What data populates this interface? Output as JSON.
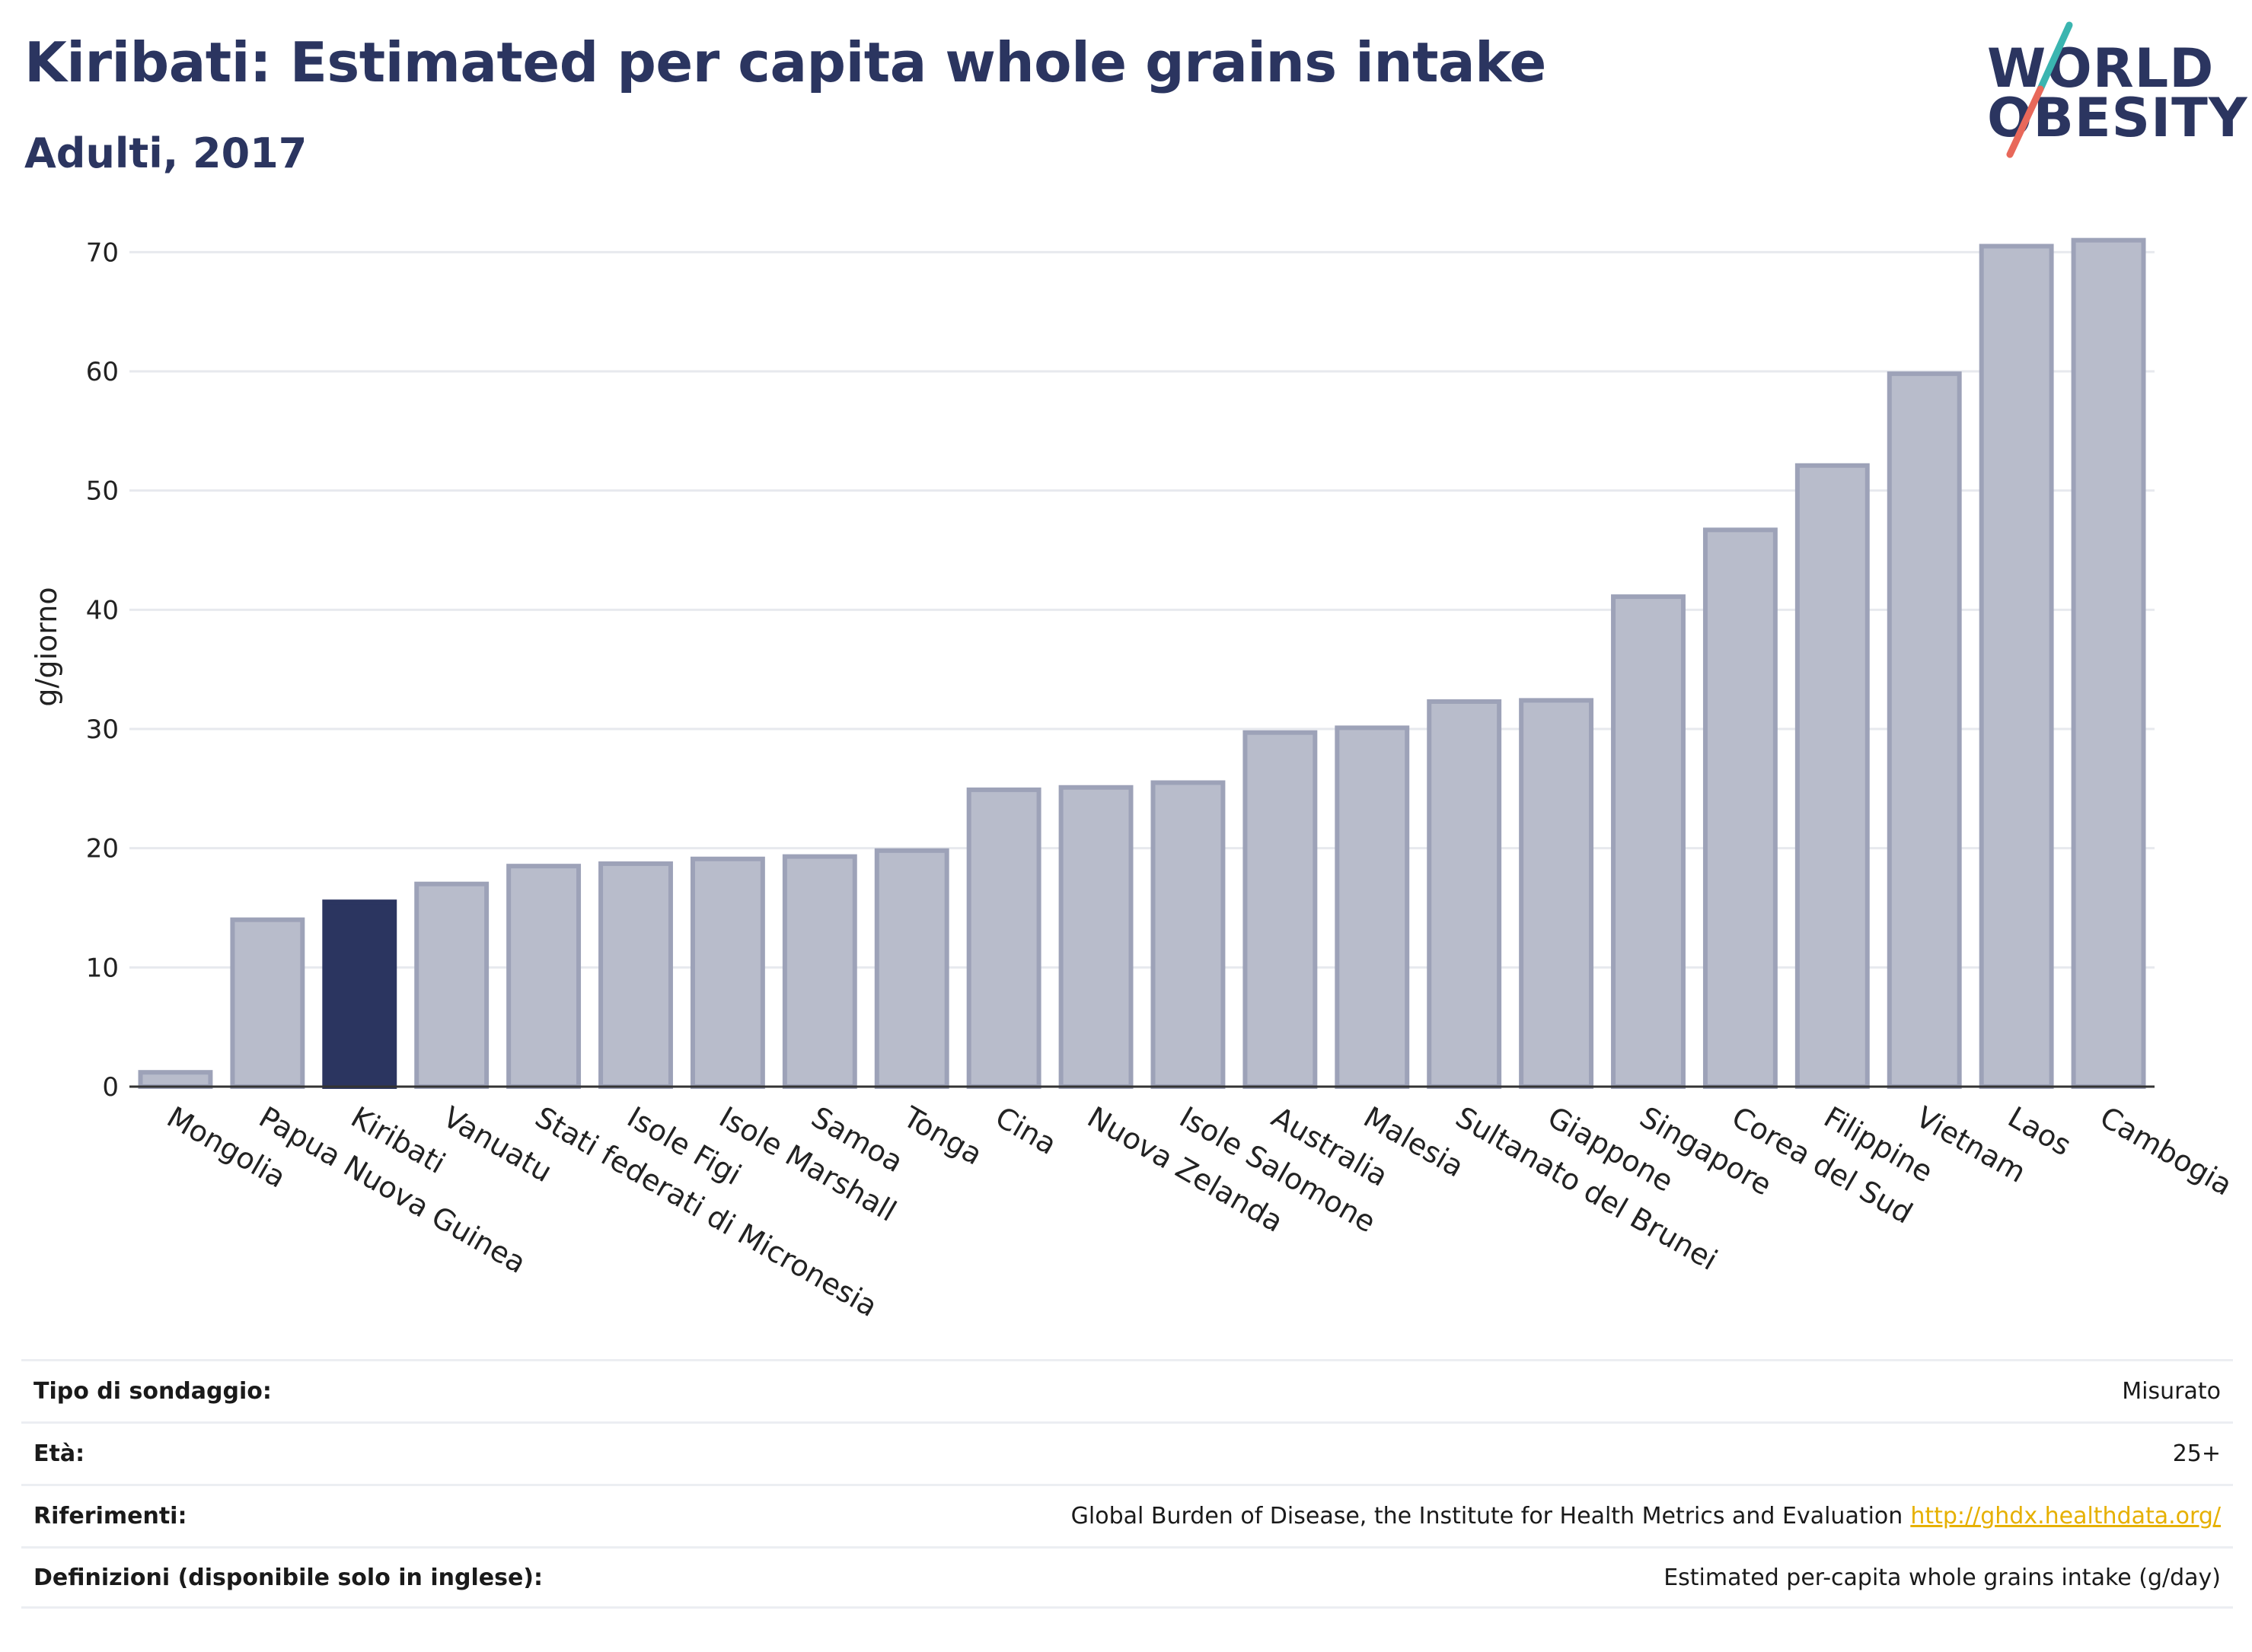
{
  "header": {
    "title": "Kiribati: Estimated per capita whole grains intake",
    "subtitle": "Adulti, 2017"
  },
  "logo": {
    "line1": "WORLD",
    "line2": "OBESITY",
    "colors": {
      "text": "#2b3560",
      "slash_top": "#3ab5b0",
      "slash_bottom": "#e8685a"
    }
  },
  "chart_data": {
    "type": "bar",
    "ylabel": "g/giorno",
    "ylim": [
      0,
      72
    ],
    "yticks": [
      0,
      10,
      20,
      30,
      40,
      50,
      60,
      70
    ],
    "grid": true,
    "highlight": "Kiribati",
    "colors": {
      "bar": "#b8bccb",
      "bar_stroke": "#9da2b8",
      "highlight": "#2b3560"
    },
    "categories": [
      "Mongolia",
      "Papua Nuova Guinea",
      "Kiribati",
      "Vanuatu",
      "Stati federati di Micronesia",
      "Isole Figi",
      "Isole Marshall",
      "Samoa",
      "Tonga",
      "Cina",
      "Nuova Zelanda",
      "Isole Salomone",
      "Australia",
      "Malesia",
      "Sultanato del Brunei",
      "Giappone",
      "Singapore",
      "Corea del Sud",
      "Filippine",
      "Vietnam",
      "Laos",
      "Cambogia"
    ],
    "values": [
      1.2,
      14.0,
      15.5,
      17.0,
      18.5,
      18.7,
      19.1,
      19.3,
      19.8,
      24.9,
      25.1,
      25.5,
      29.7,
      30.1,
      32.3,
      32.4,
      41.1,
      46.7,
      52.1,
      59.8,
      70.5,
      71.0
    ]
  },
  "meta": {
    "rows": [
      {
        "label": "Tipo di sondaggio:",
        "value": "Misurato"
      },
      {
        "label": "Età:",
        "value": "25+"
      },
      {
        "label": "Riferimenti:",
        "value": "Global Burden of Disease, the Institute for Health Metrics and Evaluation",
        "link": "http://ghdx.healthdata.org/"
      },
      {
        "label": "Definizioni (disponibile solo in inglese):",
        "value": "Estimated per-capita whole grains intake (g/day)"
      }
    ]
  }
}
